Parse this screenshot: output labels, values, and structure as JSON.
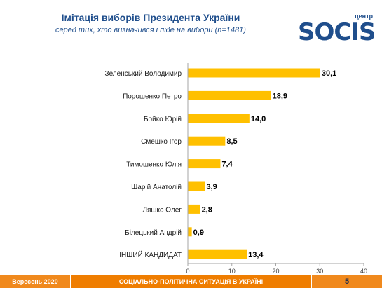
{
  "header": {
    "title": "Імітація виборів Президента України",
    "subtitle": "серед тих, хто визначився і піде на вибори (n=1481)"
  },
  "logo": {
    "small_text": "центр",
    "main_text": "SOCIS"
  },
  "colors": {
    "bar": "#ffc000",
    "title": "#1f4e8c",
    "footer": "#ef7d00"
  },
  "chart_data": {
    "type": "bar",
    "orientation": "horizontal",
    "title": "Імітація виборів Президента України",
    "subtitle": "серед тих, хто визначився і піде на вибори (n=1481)",
    "categories": [
      "Зеленський Володимир",
      "Порошенко Петро",
      "Бойко Юрій",
      "Смешко Ігор",
      "Тимошенко Юлія",
      "Шарій Анатолій",
      "Ляшко Олег",
      "Білецький Андрій",
      "ІНШИЙ КАНДИДАТ"
    ],
    "values": [
      30.1,
      18.9,
      14.0,
      8.5,
      7.4,
      3.9,
      2.8,
      0.9,
      13.4
    ],
    "value_labels": [
      "30,1",
      "18,9",
      "14,0",
      "8,5",
      "7,4",
      "3,9",
      "2,8",
      "0,9",
      "13,4"
    ],
    "xlim": [
      0,
      40
    ],
    "xticks": [
      0,
      10,
      20,
      30,
      40
    ],
    "xtick_labels": [
      "0",
      "10",
      "20",
      "30",
      "40"
    ],
    "xlabel": "",
    "ylabel": "",
    "grid": false,
    "legend": "none"
  },
  "footer": {
    "date": "Вересень 2020",
    "center": "СОЦІАЛЬНО-ПОЛІТИЧНА СИТУАЦІЯ В УКРАЇНІ",
    "page": "5"
  }
}
